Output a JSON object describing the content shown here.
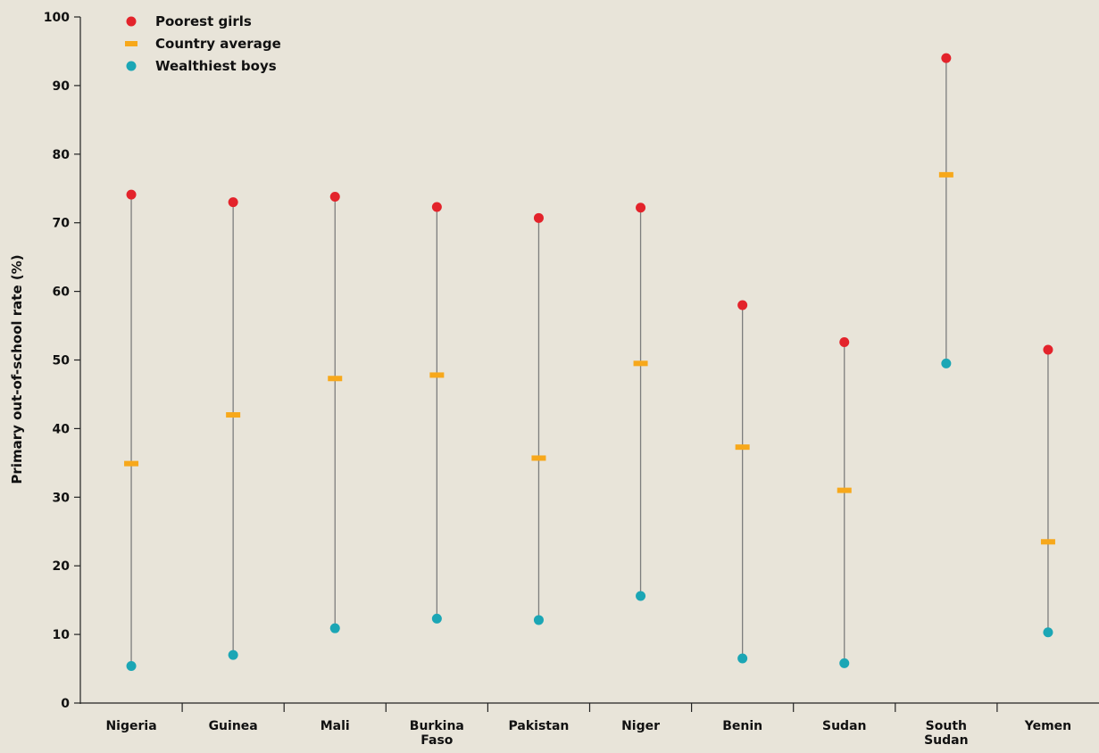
{
  "chart_data": {
    "type": "dot-range",
    "ylabel": "Primary out-of-school rate (%)",
    "ylim": [
      0,
      100
    ],
    "yticks": [
      0,
      10,
      20,
      30,
      40,
      50,
      60,
      70,
      80,
      90,
      100
    ],
    "grid": false,
    "legend_position": "top-left",
    "categories": [
      [
        "Nigeria"
      ],
      [
        "Guinea"
      ],
      [
        "Mali"
      ],
      [
        "Burkina",
        "Faso"
      ],
      [
        "Pakistan"
      ],
      [
        "Niger"
      ],
      [
        "Benin"
      ],
      [
        "Sudan"
      ],
      [
        "South",
        "Sudan"
      ],
      [
        "Yemen"
      ]
    ],
    "series": [
      {
        "name": "Poorest girls",
        "marker": "circle",
        "color": "#e3232b",
        "values": [
          74.1,
          73.0,
          73.8,
          72.3,
          70.7,
          72.2,
          58.0,
          52.6,
          94.0,
          51.5
        ]
      },
      {
        "name": "Country average",
        "marker": "dash",
        "color": "#f7a81b",
        "values": [
          34.9,
          42.0,
          47.3,
          47.8,
          35.7,
          49.5,
          37.3,
          31.0,
          77.0,
          23.5
        ]
      },
      {
        "name": "Wealthiest boys",
        "marker": "circle",
        "color": "#1ba6b5",
        "values": [
          5.4,
          7.0,
          10.9,
          12.3,
          12.1,
          15.6,
          6.5,
          5.8,
          49.5,
          10.3
        ]
      }
    ],
    "range_line_color": "#7d7d7d"
  }
}
